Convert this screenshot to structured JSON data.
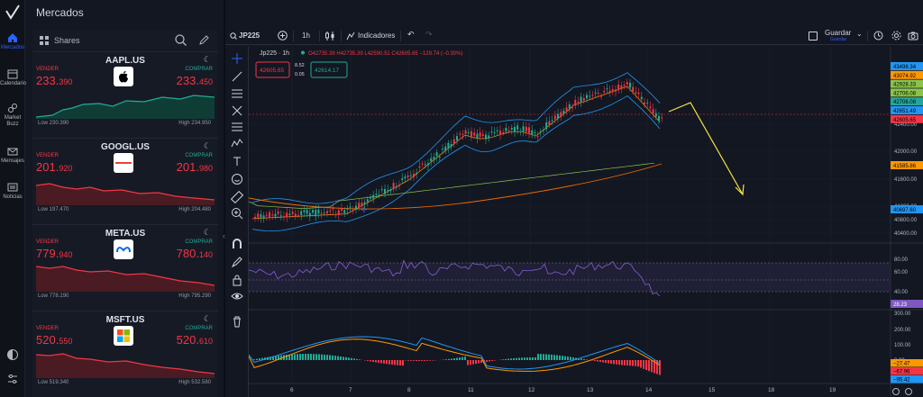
{
  "header": {
    "title": "Mercados"
  },
  "rail": {
    "items": [
      {
        "label": "Mercados",
        "icon": "home-icon"
      },
      {
        "label": "Calendario",
        "icon": "calendar-icon"
      },
      {
        "label": "Market Buzz",
        "icon": "buzz-icon"
      },
      {
        "label": "Mensajes",
        "icon": "mail-icon"
      },
      {
        "label": "Noticias",
        "icon": "news-icon"
      }
    ]
  },
  "shares": {
    "label": "Shares",
    "sell_label": "VENDER",
    "buy_label": "COMPRAR",
    "cards": [
      {
        "symbol": "AAPL.US",
        "sell_main": "233.",
        "sell_dec": "390",
        "buy_main": "233.",
        "buy_dec": "450",
        "low": "Low 230.390",
        "high": "High 234.950",
        "trend": "up"
      },
      {
        "symbol": "GOOGL.US",
        "sell_main": "201.",
        "sell_dec": "920",
        "buy_main": "201.",
        "buy_dec": "980",
        "low": "Low 197.470",
        "high": "High 204.480",
        "trend": "down"
      },
      {
        "symbol": "META.US",
        "sell_main": "779.",
        "sell_dec": "940",
        "buy_main": "780.",
        "buy_dec": "140",
        "low": "Low 778.190",
        "high": "High 795.290",
        "trend": "down"
      },
      {
        "symbol": "MSFT.US",
        "sell_main": "520.",
        "sell_dec": "550",
        "buy_main": "520.",
        "buy_dec": "610",
        "low": "Low 519.340",
        "high": "High 532.580",
        "trend": "down"
      }
    ]
  },
  "toolbar": {
    "symbol": "JP225",
    "interval": "1h",
    "indicators": "Indicadores",
    "save": "Guardar",
    "save_sub": "Guardar"
  },
  "legend": {
    "title": "Jp225 · 1h",
    "ohlc": "O42735.39 H42735.39 L42590.51 C42605.65 −129.74 (−0.30%)",
    "sell_box": "42605.65",
    "spread_top": "8.52",
    "spread_bot": "0.05",
    "buy_box": "42614.17"
  },
  "price_axis": {
    "tags": [
      {
        "v": "43498.34",
        "color": "#2196f3"
      },
      {
        "v": "43074.92",
        "color": "#ff9800"
      },
      {
        "v": "42928.33",
        "color": "#8bc34a"
      },
      {
        "v": "42706.08",
        "color": "#8bc34a"
      },
      {
        "v": "42706.08",
        "color": "#26a69a"
      },
      {
        "v": "42651.49",
        "color": "#2196f3"
      },
      {
        "v": "42605.65",
        "color": "#f23645"
      }
    ],
    "ticks": [
      "42400.00",
      "42000.00",
      "41600.00",
      "41200.00",
      "40800.00",
      "40400.00",
      "40000.00"
    ],
    "tag_ema": "41585.86",
    "tag_low": "40697.60"
  },
  "rsi_axis": {
    "ticks": [
      "80.00",
      "60.00",
      "40.00"
    ],
    "value": "28.23"
  },
  "macd_axis": {
    "ticks": [
      "300.00",
      "200.00",
      "100.00",
      "0.00"
    ],
    "v1": "−27.47",
    "v2": "−67.96",
    "v3": "−95.42"
  },
  "time_axis": [
    "6",
    "7",
    "8",
    "11",
    "12",
    "13",
    "14",
    "15",
    "18",
    "19"
  ],
  "colors": {
    "bg": "#131722",
    "up": "#22ab94",
    "down": "#f23645",
    "accent": "#2962ff"
  }
}
